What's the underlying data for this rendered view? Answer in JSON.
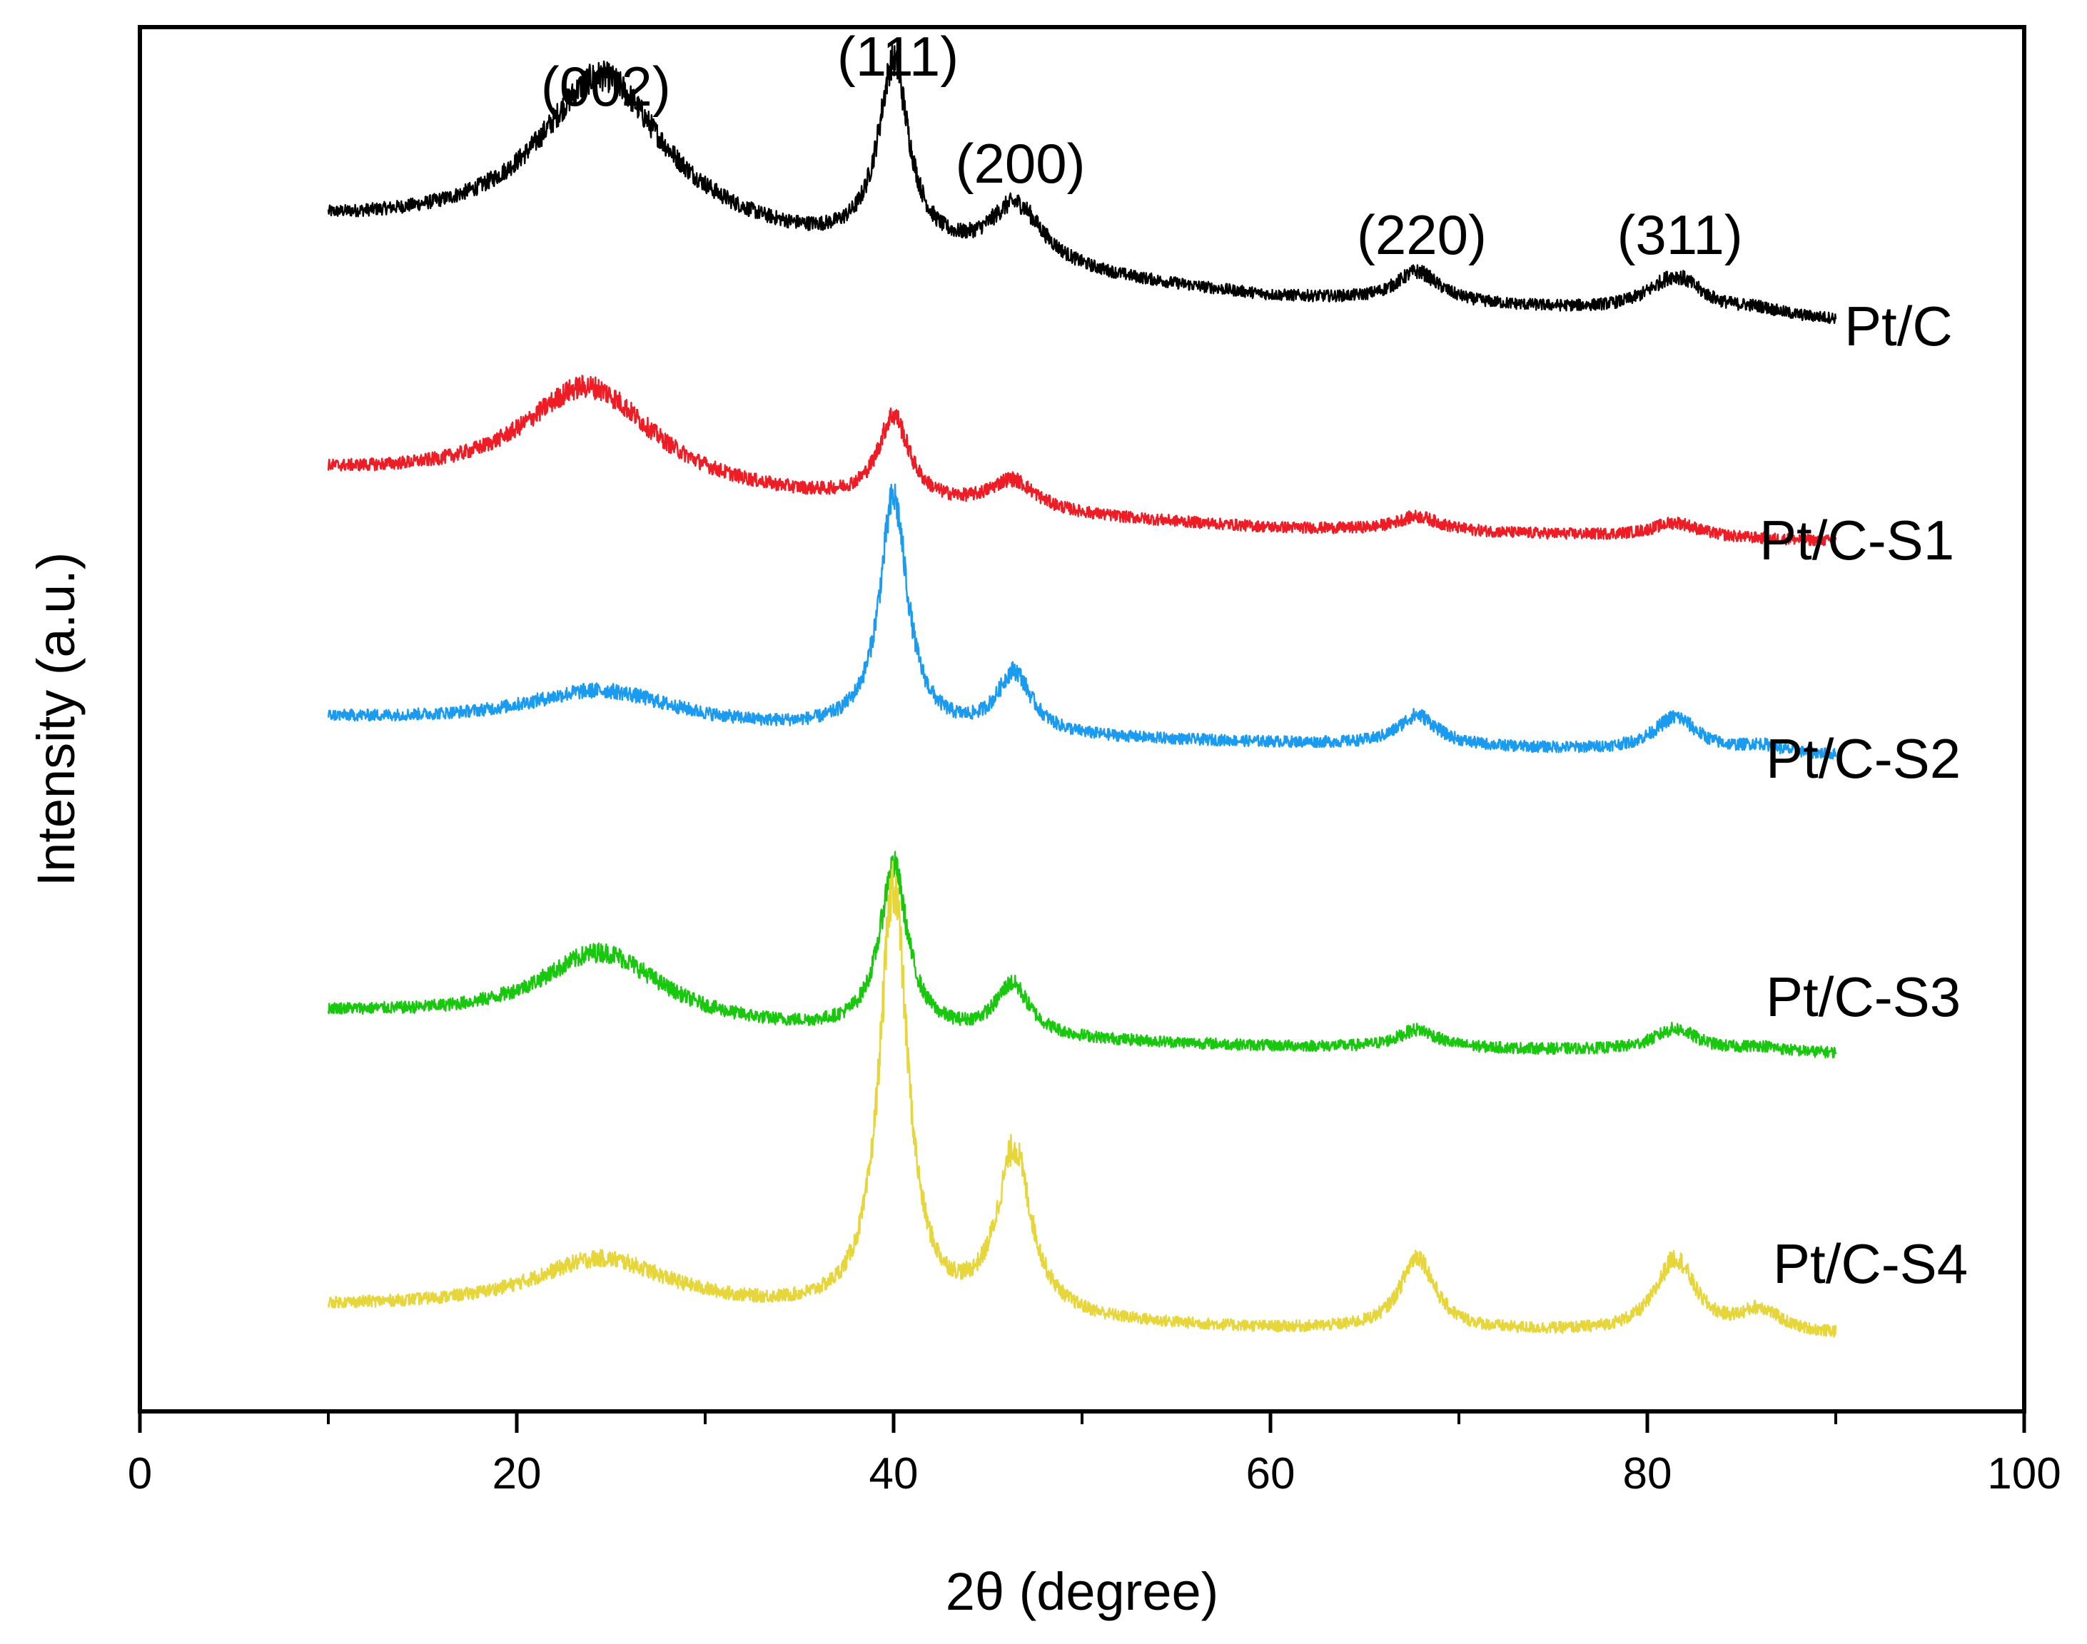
{
  "chart_data": {
    "type": "line",
    "title": "",
    "xlabel": "2θ (degree)",
    "ylabel": "Intensity (a.u.)",
    "xlim": [
      0,
      100
    ],
    "xticks": [
      0,
      20,
      40,
      60,
      80,
      100
    ],
    "minor_xticks": [
      10,
      30,
      50,
      70,
      90
    ],
    "yticks": [],
    "grid": false,
    "legend": "none",
    "x_range_measured": [
      10,
      90
    ],
    "peak_labels": [
      {
        "text": "(002)",
        "x": 24.5
      },
      {
        "text": "(111)",
        "x": 40.0
      },
      {
        "text": "(200)",
        "x": 46.5
      },
      {
        "text": "(220)",
        "x": 67.8
      },
      {
        "text": "(311)",
        "x": 81.5
      }
    ],
    "series": [
      {
        "name": "Pt/C",
        "color": "#000000",
        "baseline": [
          [
            10,
            9.7
          ],
          [
            30,
            9.55
          ],
          [
            60,
            9.08
          ],
          [
            90,
            8.9
          ]
        ],
        "peaks": [
          {
            "center": 24.5,
            "height": 1.3,
            "fwhm": 8.0
          },
          {
            "center": 40.0,
            "height": 1.52,
            "fwhm": 2.0
          },
          {
            "center": 46.5,
            "height": 0.5,
            "fwhm": 3.5
          },
          {
            "center": 67.8,
            "height": 0.25,
            "fwhm": 2.8
          },
          {
            "center": 81.5,
            "height": 0.3,
            "fwhm": 3.5
          },
          {
            "center": 85.8,
            "height": 0.05,
            "fwhm": 3.0
          }
        ]
      },
      {
        "name": "Pt/C-S1",
        "color": "#ee1c25",
        "baseline": [
          [
            10,
            7.65
          ],
          [
            30,
            7.45
          ],
          [
            60,
            7.2
          ],
          [
            90,
            7.1
          ]
        ],
        "peaks": [
          {
            "center": 23.8,
            "height": 0.85,
            "fwhm": 8.5
          },
          {
            "center": 40.0,
            "height": 0.7,
            "fwhm": 2.0
          },
          {
            "center": 46.3,
            "height": 0.25,
            "fwhm": 3.0
          },
          {
            "center": 67.8,
            "height": 0.12,
            "fwhm": 2.8
          },
          {
            "center": 81.5,
            "height": 0.12,
            "fwhm": 3.0
          }
        ]
      },
      {
        "name": "Pt/C-S2",
        "color": "#1a9bf0",
        "baseline": [
          [
            10,
            5.65
          ],
          [
            30,
            5.55
          ],
          [
            60,
            5.45
          ],
          [
            90,
            5.35
          ]
        ],
        "peaks": [
          {
            "center": 24.5,
            "height": 0.3,
            "fwhm": 10.0
          },
          {
            "center": 40.0,
            "height": 1.9,
            "fwhm": 1.8
          },
          {
            "center": 46.4,
            "height": 0.5,
            "fwhm": 2.2
          },
          {
            "center": 67.8,
            "height": 0.25,
            "fwhm": 2.5
          },
          {
            "center": 81.5,
            "height": 0.28,
            "fwhm": 2.8
          },
          {
            "center": 86.0,
            "height": 0.06,
            "fwhm": 2.5
          }
        ]
      },
      {
        "name": "Pt/C-S3",
        "color": "#19c80e",
        "baseline": [
          [
            10,
            3.25
          ],
          [
            30,
            3.1
          ],
          [
            60,
            2.97
          ],
          [
            90,
            2.92
          ]
        ],
        "peaks": [
          {
            "center": 24.5,
            "height": 0.6,
            "fwhm": 8.0
          },
          {
            "center": 40.0,
            "height": 1.35,
            "fwhm": 1.8
          },
          {
            "center": 46.3,
            "height": 0.42,
            "fwhm": 2.2
          },
          {
            "center": 67.8,
            "height": 0.15,
            "fwhm": 2.5
          },
          {
            "center": 81.5,
            "height": 0.18,
            "fwhm": 2.8
          },
          {
            "center": 86.0,
            "height": 0.04,
            "fwhm": 2.5
          }
        ]
      },
      {
        "name": "Pt/C-S4",
        "color": "#e6d63c",
        "baseline": [
          [
            10,
            0.85
          ],
          [
            30,
            0.8
          ],
          [
            60,
            0.66
          ],
          [
            90,
            0.62
          ]
        ],
        "peaks": [
          {
            "center": 24.5,
            "height": 0.42,
            "fwhm": 9.0
          },
          {
            "center": 40.0,
            "height": 3.5,
            "fwhm": 1.8
          },
          {
            "center": 46.4,
            "height": 1.35,
            "fwhm": 2.2
          },
          {
            "center": 67.8,
            "height": 0.6,
            "fwhm": 2.2
          },
          {
            "center": 81.5,
            "height": 0.6,
            "fwhm": 2.5
          },
          {
            "center": 86.0,
            "height": 0.18,
            "fwhm": 2.5
          }
        ]
      }
    ]
  }
}
